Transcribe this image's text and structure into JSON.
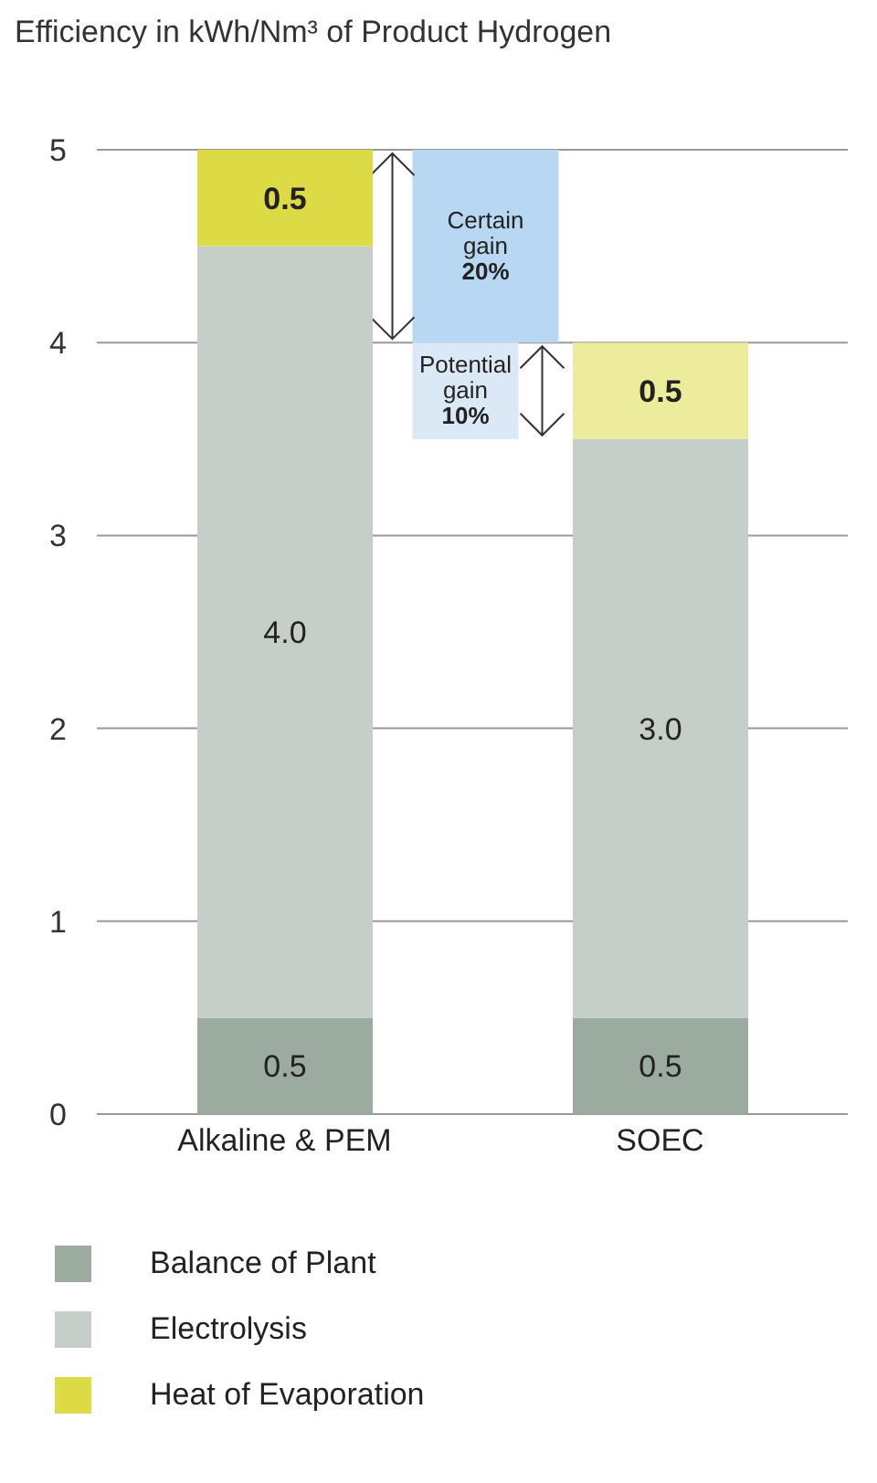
{
  "chart_data": {
    "type": "bar",
    "title": "Efficiency in kWh/Nm³ of Product Hydrogen",
    "categories": [
      "Alkaline & PEM",
      "SOEC"
    ],
    "stacked": true,
    "series": [
      {
        "name": "Balance of Plant",
        "color": "#9cab9f",
        "values": [
          0.5,
          0.5
        ],
        "value_labels": [
          "0.5",
          "0.5"
        ]
      },
      {
        "name": "Electrolysis",
        "color": "#c6cec9",
        "values": [
          4.0,
          3.0
        ],
        "value_labels": [
          "4.0",
          "3.0"
        ]
      },
      {
        "name": "Heat of Evaporation",
        "color": "#dcdb45",
        "colors": [
          "#dcdb45",
          "#ecec9c"
        ],
        "values": [
          0.5,
          0.5
        ],
        "value_labels": [
          "0.5",
          "0.5"
        ]
      }
    ],
    "bands": [
      {
        "axis": "y",
        "from": 4,
        "to": 5,
        "label": "Certain gain 20%",
        "color": "#b8d7f2"
      },
      {
        "axis": "y",
        "from": 3.5,
        "to": 4,
        "label": "Potential gain 10%",
        "color": "#dbe8f5"
      }
    ],
    "ylim": [
      0,
      5
    ],
    "yticks": [
      0,
      1,
      2,
      3,
      4,
      5
    ],
    "grid": "y",
    "legend": "bottom"
  }
}
